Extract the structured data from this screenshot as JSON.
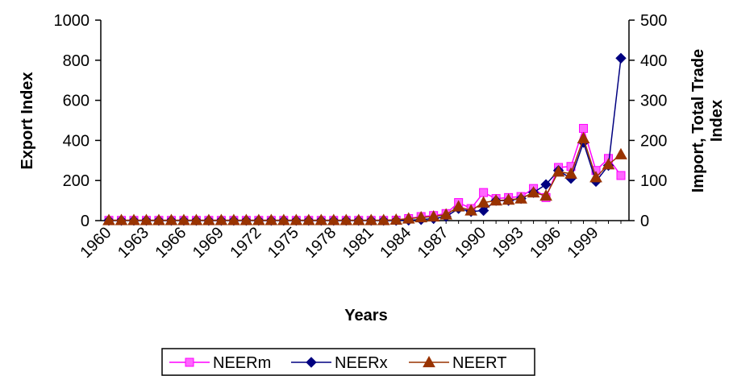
{
  "chart_data": {
    "type": "line",
    "title": "",
    "xlabel": "Years",
    "ylabel_left": "Export Index",
    "ylabel_right_line1": "Import, Total Trade",
    "ylabel_right_line2": "Index",
    "ylim_left": [
      0,
      1000
    ],
    "ylim_right": [
      0,
      500
    ],
    "yticks_left": [
      "0",
      "200",
      "400",
      "600",
      "800",
      "1000"
    ],
    "yticks_right": [
      "0",
      "100",
      "200",
      "300",
      "400",
      "500"
    ],
    "xtick_labels": [
      "1960",
      "1963",
      "1966",
      "1969",
      "1972",
      "1975",
      "1978",
      "1981",
      "1984",
      "1987",
      "1990",
      "1993",
      "1996",
      "1999"
    ],
    "x": [
      1960,
      1961,
      1962,
      1963,
      1964,
      1965,
      1966,
      1967,
      1968,
      1969,
      1970,
      1971,
      1972,
      1973,
      1974,
      1975,
      1976,
      1977,
      1978,
      1979,
      1980,
      1981,
      1982,
      1983,
      1984,
      1985,
      1986,
      1987,
      1988,
      1989,
      1990,
      1991,
      1992,
      1993,
      1994,
      1995,
      1996,
      1997,
      1998,
      1999,
      2000,
      2001
    ],
    "legend_position": "bottom",
    "grid": false,
    "series": [
      {
        "name": "NEERm",
        "axis": "left",
        "color": "#ff00ff",
        "marker": "square",
        "values": [
          1,
          1,
          1,
          1,
          1,
          1,
          1,
          1,
          1,
          1,
          1,
          1,
          1,
          1,
          1,
          1,
          1,
          1,
          1,
          1,
          1,
          1,
          1,
          2,
          10,
          20,
          25,
          35,
          90,
          60,
          140,
          110,
          115,
          120,
          160,
          115,
          265,
          270,
          460,
          250,
          310,
          225
        ]
      },
      {
        "name": "NEERx",
        "axis": "left",
        "color": "#000080",
        "marker": "diamond",
        "values": [
          1,
          1,
          1,
          1,
          1,
          1,
          1,
          1,
          1,
          1,
          1,
          1,
          1,
          1,
          1,
          1,
          1,
          1,
          1,
          1,
          1,
          1,
          1,
          1,
          2,
          5,
          10,
          20,
          60,
          45,
          50,
          100,
          100,
          110,
          140,
          180,
          250,
          210,
          390,
          195,
          275,
          810
        ]
      },
      {
        "name": "NEERT",
        "axis": "right",
        "color": "#993300",
        "marker": "triangle",
        "values": [
          1,
          1,
          1,
          1,
          1,
          1,
          1,
          1,
          1,
          1,
          1,
          1,
          1,
          1,
          1,
          1,
          1,
          1,
          1,
          1,
          1,
          1,
          1,
          2,
          5,
          8,
          10,
          15,
          35,
          25,
          45,
          50,
          52,
          55,
          70,
          62,
          122,
          117,
          205,
          108,
          140,
          165
        ]
      }
    ]
  }
}
